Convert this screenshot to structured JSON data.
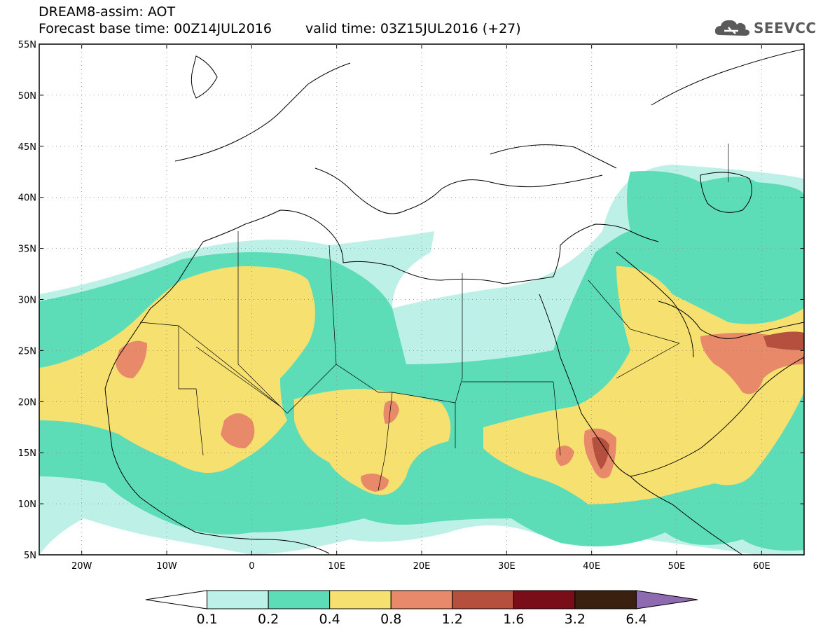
{
  "title": {
    "line1": "DREAM8-assim: AOT",
    "base_time": "Forecast base time: 00Z14JUL2016",
    "valid_time": "valid time: 03Z15JUL2016 (+27)"
  },
  "logo": {
    "text": "SEEVCCC",
    "icon": "cloud-icon"
  },
  "map": {
    "lon_range": [
      -25,
      65
    ],
    "lat_range": [
      5,
      55
    ],
    "lat_labels": [
      "5N",
      "10N",
      "15N",
      "20N",
      "25N",
      "30N",
      "35N",
      "40N",
      "45N",
      "50N",
      "55N"
    ],
    "lat_values": [
      5,
      10,
      15,
      20,
      25,
      30,
      35,
      40,
      45,
      50,
      55
    ],
    "lon_labels": [
      "20W",
      "10W",
      "0",
      "10E",
      "20E",
      "30E",
      "40E",
      "50E",
      "60E"
    ],
    "lon_values": [
      -20,
      -10,
      0,
      10,
      20,
      30,
      40,
      50,
      60
    ]
  },
  "colorbar": {
    "labels": [
      "0.1",
      "0.2",
      "0.4",
      "0.8",
      "1.2",
      "1.6",
      "3.2",
      "6.4"
    ],
    "colors": [
      "#ffffff",
      "#bdf0e6",
      "#5ddcb8",
      "#f5e070",
      "#e8896a",
      "#b5503f",
      "#7a0d1a",
      "#3a2010",
      "#8e6bb0"
    ]
  }
}
